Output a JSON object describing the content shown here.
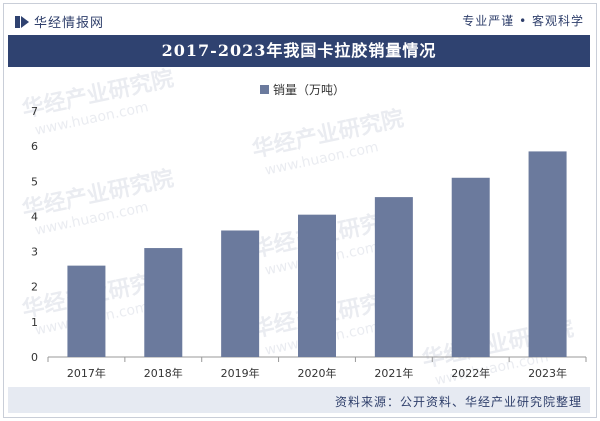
{
  "header": {
    "logo_text": "华经情报网",
    "slogan": "专业严谨 • 客观科学"
  },
  "title": "2017-2023年我国卡拉胶销量情况",
  "source": "资料来源：公开资料、华经产业研究院整理",
  "watermark": {
    "cn": "华经产业研究院",
    "en": "www.huaon.com"
  },
  "colors": {
    "bar": "#6b7a9d",
    "title_bg": "#2f4270",
    "source_bg": "#e6eaf2",
    "text": "#2f3f6b"
  },
  "chart_data": {
    "type": "bar",
    "categories": [
      "2017年",
      "2018年",
      "2019年",
      "2020年",
      "2021年",
      "2022年",
      "2023年"
    ],
    "series": [
      {
        "name": "销量（万吨）",
        "values": [
          2.6,
          3.1,
          3.6,
          4.05,
          4.55,
          5.1,
          5.85
        ]
      }
    ],
    "ylim": [
      0,
      7
    ],
    "yticks": [
      0,
      1,
      2,
      3,
      4,
      5,
      6,
      7
    ],
    "legend_position": "top-center",
    "grid": false
  }
}
